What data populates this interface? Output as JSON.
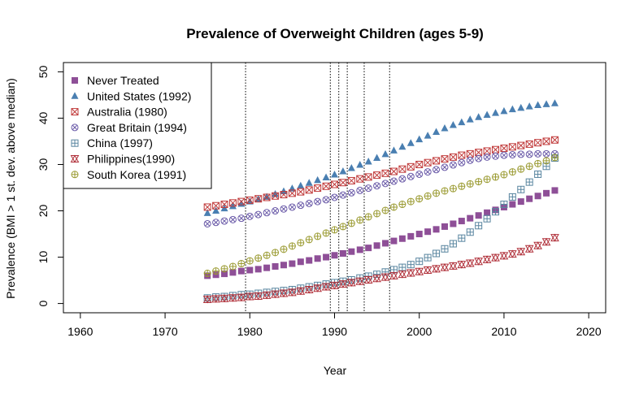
{
  "chart_data": {
    "type": "scatter",
    "title": "Prevalence of Overweight Children (ages 5-9)",
    "xlabel": "Year",
    "ylabel": "Prevalence (BMI > 1 st. dev. above median)",
    "xlim": [
      1958,
      2022
    ],
    "ylim": [
      -2,
      52
    ],
    "xticks": [
      1960,
      1970,
      1980,
      1990,
      2000,
      2010,
      2020
    ],
    "yticks": [
      0,
      10,
      20,
      30,
      40,
      50
    ],
    "grid": false,
    "legend_position": "top-left",
    "vlines": [
      1980,
      1990,
      1991,
      1992,
      1994,
      1997
    ],
    "x_start": 1975,
    "x_end": 2016,
    "series": [
      {
        "name": "Never Treated",
        "marker": "square",
        "color": "#8e4f97",
        "values": [
          6.0,
          6.2,
          6.4,
          6.7,
          7.0,
          7.2,
          7.4,
          7.7,
          8.0,
          8.3,
          8.6,
          9.0,
          9.3,
          9.7,
          10.0,
          10.4,
          10.8,
          11.2,
          11.6,
          12.0,
          12.5,
          13.0,
          13.5,
          14.0,
          14.5,
          15.0,
          15.5,
          16.0,
          16.6,
          17.2,
          17.8,
          18.4,
          19.0,
          19.6,
          20.2,
          20.8,
          21.4,
          22.0,
          22.6,
          23.2,
          23.8,
          24.4
        ]
      },
      {
        "name": "United States (1992)",
        "marker": "triangle",
        "color": "#4a7fb1",
        "values": [
          19.5,
          20.0,
          20.5,
          21.0,
          21.5,
          22.0,
          22.5,
          23.0,
          23.6,
          24.2,
          24.8,
          25.4,
          26.0,
          26.6,
          27.2,
          27.8,
          28.5,
          29.2,
          29.9,
          30.6,
          31.4,
          32.2,
          33.0,
          33.8,
          34.6,
          35.4,
          36.2,
          37.0,
          37.8,
          38.5,
          39.1,
          39.7,
          40.2,
          40.7,
          41.1,
          41.5,
          41.9,
          42.2,
          42.5,
          42.8,
          43.0,
          43.2
        ]
      },
      {
        "name": "Australia (1980)",
        "marker": "square-x",
        "color": "#c03a3a",
        "values": [
          20.8,
          21.1,
          21.4,
          21.7,
          22.0,
          22.3,
          22.6,
          22.9,
          23.2,
          23.5,
          23.8,
          24.1,
          24.5,
          24.9,
          25.3,
          25.7,
          26.1,
          26.5,
          26.9,
          27.3,
          27.7,
          28.1,
          28.5,
          29.0,
          29.5,
          30.0,
          30.4,
          30.8,
          31.2,
          31.6,
          32.0,
          32.3,
          32.6,
          32.9,
          33.2,
          33.5,
          33.8,
          34.1,
          34.4,
          34.7,
          35.0,
          35.3
        ]
      },
      {
        "name": "Great Britain (1994)",
        "marker": "circle-x",
        "color": "#6a5aa8",
        "values": [
          17.2,
          17.5,
          17.8,
          18.1,
          18.4,
          18.8,
          19.2,
          19.6,
          20.0,
          20.4,
          20.8,
          21.2,
          21.6,
          22.0,
          22.4,
          22.9,
          23.4,
          23.9,
          24.4,
          24.9,
          25.4,
          25.9,
          26.4,
          26.9,
          27.4,
          27.9,
          28.4,
          28.9,
          29.4,
          29.9,
          30.4,
          30.9,
          31.3,
          31.6,
          31.8,
          32.0,
          32.1,
          32.2,
          32.2,
          32.3,
          32.3,
          32.3
        ]
      },
      {
        "name": "China (1997)",
        "marker": "square-plus",
        "color": "#5a86a0",
        "values": [
          1.2,
          1.4,
          1.5,
          1.7,
          1.9,
          2.0,
          2.2,
          2.4,
          2.6,
          2.8,
          3.0,
          3.3,
          3.6,
          3.9,
          4.2,
          4.5,
          4.8,
          5.1,
          5.5,
          5.9,
          6.3,
          6.8,
          7.3,
          7.8,
          8.4,
          9.1,
          9.9,
          10.8,
          11.8,
          12.9,
          14.1,
          15.4,
          16.8,
          18.3,
          19.8,
          21.4,
          23.0,
          24.6,
          26.2,
          27.9,
          29.6,
          31.4
        ]
      },
      {
        "name": "Philippines(1990)",
        "marker": "hourglass",
        "color": "#b0303a",
        "values": [
          0.9,
          1.0,
          1.1,
          1.2,
          1.3,
          1.5,
          1.6,
          1.8,
          2.0,
          2.2,
          2.4,
          2.7,
          3.0,
          3.3,
          3.6,
          3.9,
          4.2,
          4.5,
          4.8,
          5.1,
          5.4,
          5.7,
          6.0,
          6.3,
          6.6,
          6.9,
          7.2,
          7.5,
          7.8,
          8.1,
          8.4,
          8.7,
          9.1,
          9.5,
          9.9,
          10.3,
          10.7,
          11.2,
          11.8,
          12.5,
          13.3,
          14.2
        ]
      },
      {
        "name": "South Korea (1991)",
        "marker": "circle-plus",
        "color": "#9a9a30",
        "values": [
          6.5,
          7.0,
          7.5,
          8.0,
          8.6,
          9.2,
          9.8,
          10.4,
          11.0,
          11.7,
          12.4,
          13.1,
          13.8,
          14.5,
          15.2,
          15.9,
          16.6,
          17.3,
          18.0,
          18.7,
          19.4,
          20.1,
          20.8,
          21.4,
          22.0,
          22.6,
          23.2,
          23.8,
          24.3,
          24.8,
          25.3,
          25.8,
          26.3,
          26.8,
          27.3,
          27.8,
          28.4,
          29.0,
          29.6,
          30.2,
          30.8,
          31.5
        ]
      }
    ]
  }
}
